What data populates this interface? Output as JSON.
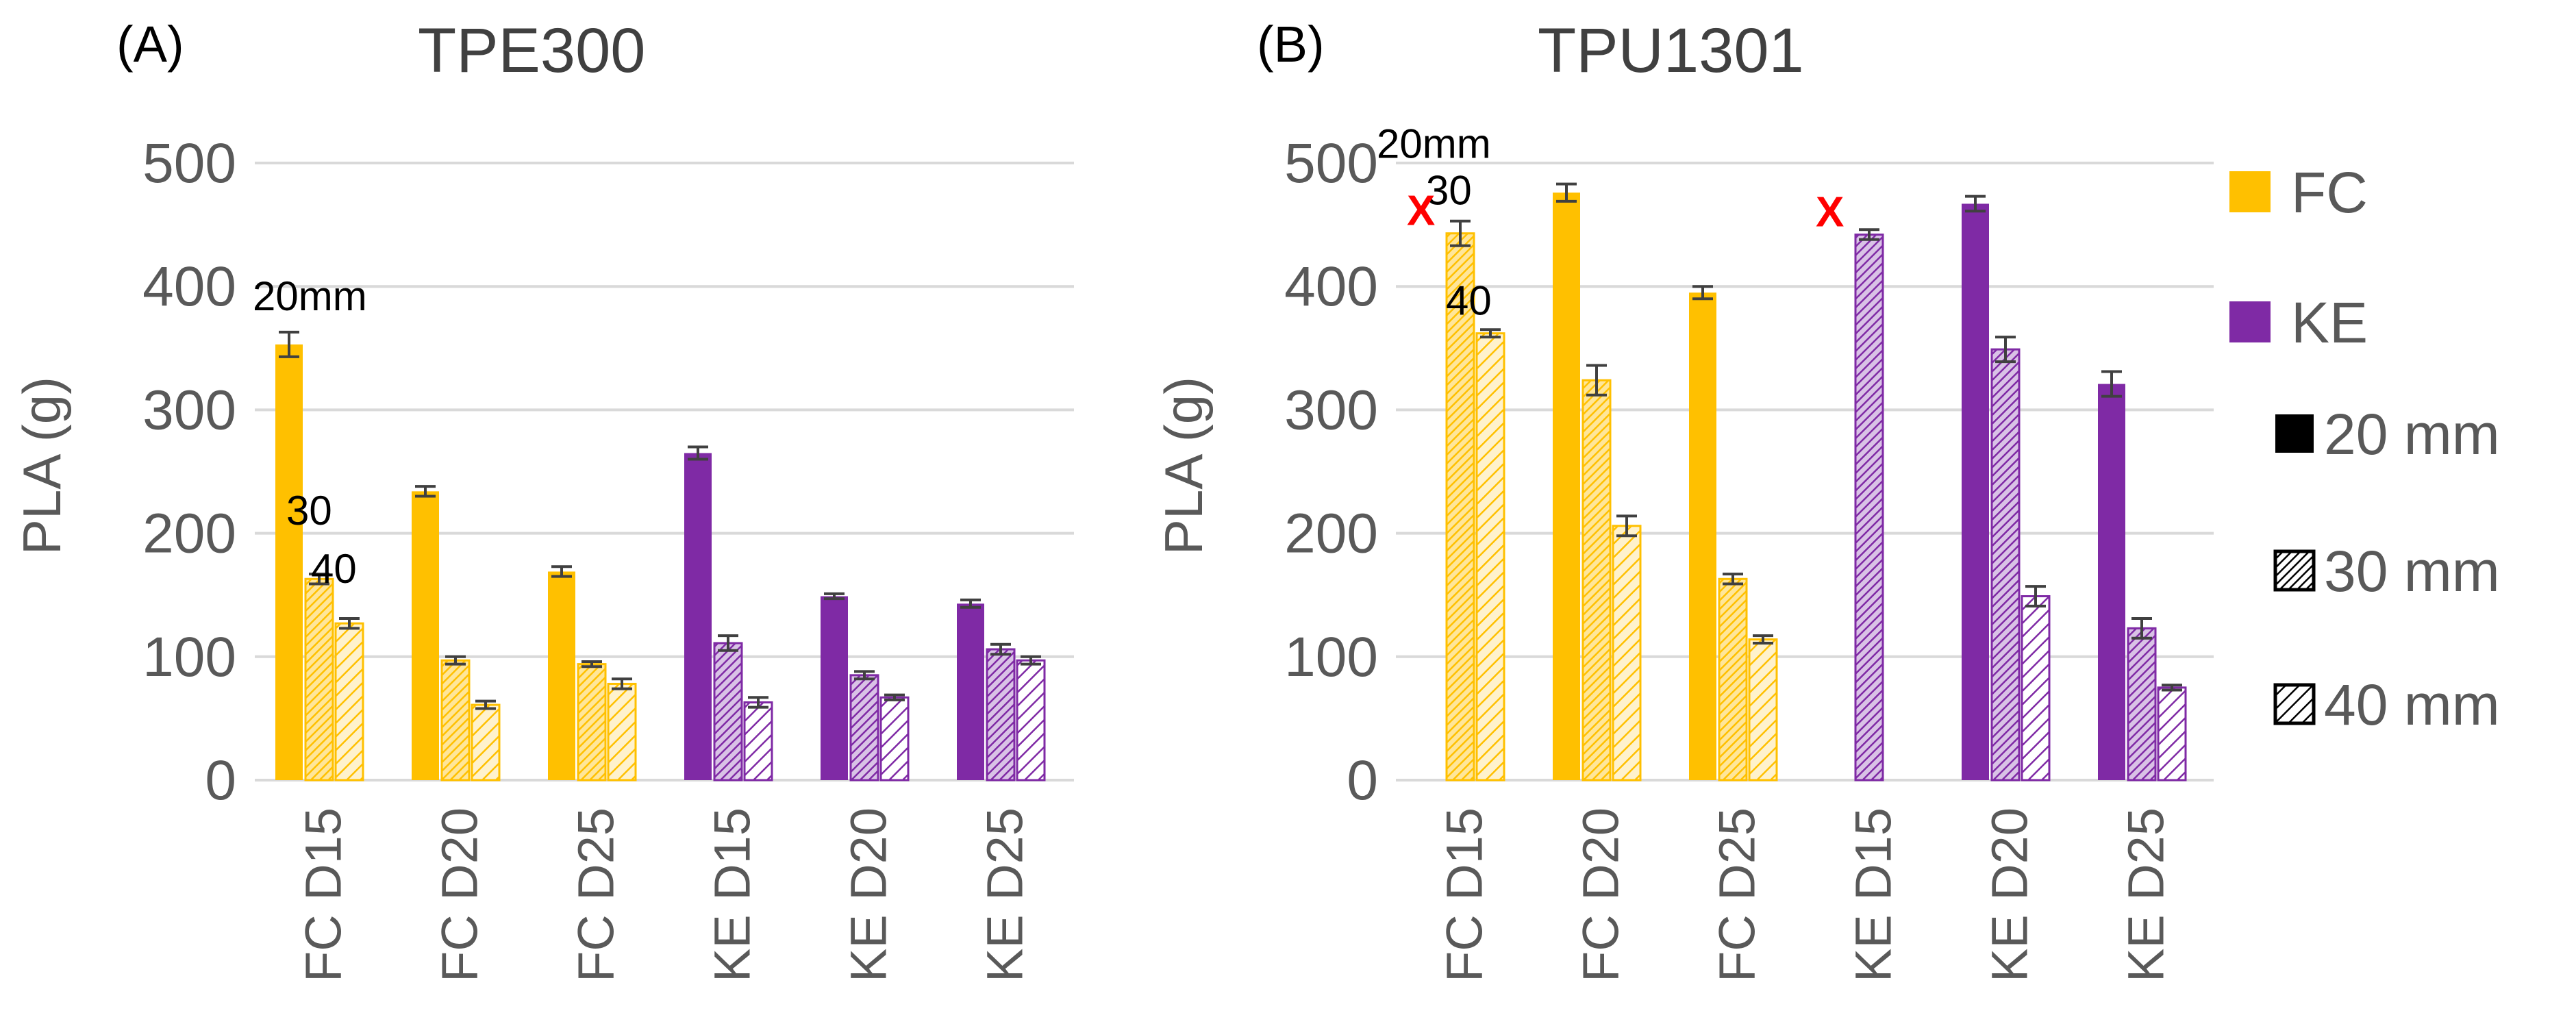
{
  "legend": {
    "items": [
      {
        "label": "FC",
        "color": "#FFC000",
        "pattern": "solid"
      },
      {
        "label": "KE",
        "color": "#7F2AA5",
        "pattern": "solid"
      },
      {
        "label": "20 mm",
        "color": "#000000",
        "pattern": "solid"
      },
      {
        "label": "30 mm",
        "color": "#000000",
        "pattern": "dense-hatch"
      },
      {
        "label": "40 mm",
        "color": "#000000",
        "pattern": "sparse-hatch"
      }
    ]
  },
  "chart_data": [
    {
      "type": "bar",
      "panel_label": "(A)",
      "title": "TPE300",
      "ylabel": "PLA (g)",
      "ylim": [
        0,
        500
      ],
      "yticks": [
        "0",
        "100",
        "200",
        "300",
        "400",
        "500"
      ],
      "categories": [
        "FC D15",
        "FC D20",
        "FC D25",
        "KE D15",
        "KE D20",
        "KE D25"
      ],
      "category_colors": [
        "#FFC000",
        "#FFC000",
        "#FFC000",
        "#7F2AA5",
        "#7F2AA5",
        "#7F2AA5"
      ],
      "series": [
        {
          "name": "20 mm",
          "values": [
            353,
            234,
            169,
            265,
            149,
            143
          ],
          "errors": [
            10,
            4,
            4,
            5,
            2,
            3
          ]
        },
        {
          "name": "30 mm",
          "values": [
            163,
            97,
            94,
            111,
            85,
            106
          ],
          "errors": [
            4,
            3,
            2,
            6,
            3,
            4
          ]
        },
        {
          "name": "40 mm",
          "values": [
            127,
            61,
            78,
            63,
            67,
            97
          ],
          "errors": [
            4,
            3,
            4,
            4,
            2,
            3
          ]
        }
      ],
      "annotations": [
        {
          "text": "20mm",
          "category": 0,
          "series": 0
        },
        {
          "text": "30",
          "category": 0,
          "series": 1
        },
        {
          "text": "40",
          "category": 0,
          "series": 2
        }
      ],
      "missing_markers": [],
      "grid": true
    },
    {
      "type": "bar",
      "panel_label": "(B)",
      "title": "TPU1301",
      "ylabel": "PLA (g)",
      "ylim": [
        0,
        500
      ],
      "yticks": [
        "0",
        "100",
        "200",
        "300",
        "400",
        "500"
      ],
      "categories": [
        "FC D15",
        "FC D20",
        "FC D25",
        "KE D15",
        "KE D20",
        "KE D25"
      ],
      "category_colors": [
        "#FFC000",
        "#FFC000",
        "#FFC000",
        "#7F2AA5",
        "#7F2AA5",
        "#7F2AA5"
      ],
      "series": [
        {
          "name": "20 mm",
          "values": [
            null,
            476,
            395,
            null,
            467,
            321
          ],
          "errors": [
            0,
            7,
            5,
            0,
            6,
            10
          ]
        },
        {
          "name": "30 mm",
          "values": [
            443,
            324,
            163,
            442,
            349,
            123
          ],
          "errors": [
            10,
            12,
            4,
            4,
            10,
            8
          ]
        },
        {
          "name": "40 mm",
          "values": [
            362,
            206,
            114,
            null,
            149,
            75
          ],
          "errors": [
            3,
            8,
            3,
            0,
            8,
            2
          ]
        }
      ],
      "annotations": [
        {
          "text": "20mm",
          "category": 0,
          "series": 0
        },
        {
          "text": "30",
          "category": 0,
          "series": 1
        },
        {
          "text": "40",
          "category": 0,
          "series": 2
        }
      ],
      "missing_markers": [
        {
          "text": "X",
          "category": 0,
          "series": 0
        },
        {
          "text": "X",
          "category": 3,
          "series": 0
        }
      ],
      "grid": true
    }
  ]
}
